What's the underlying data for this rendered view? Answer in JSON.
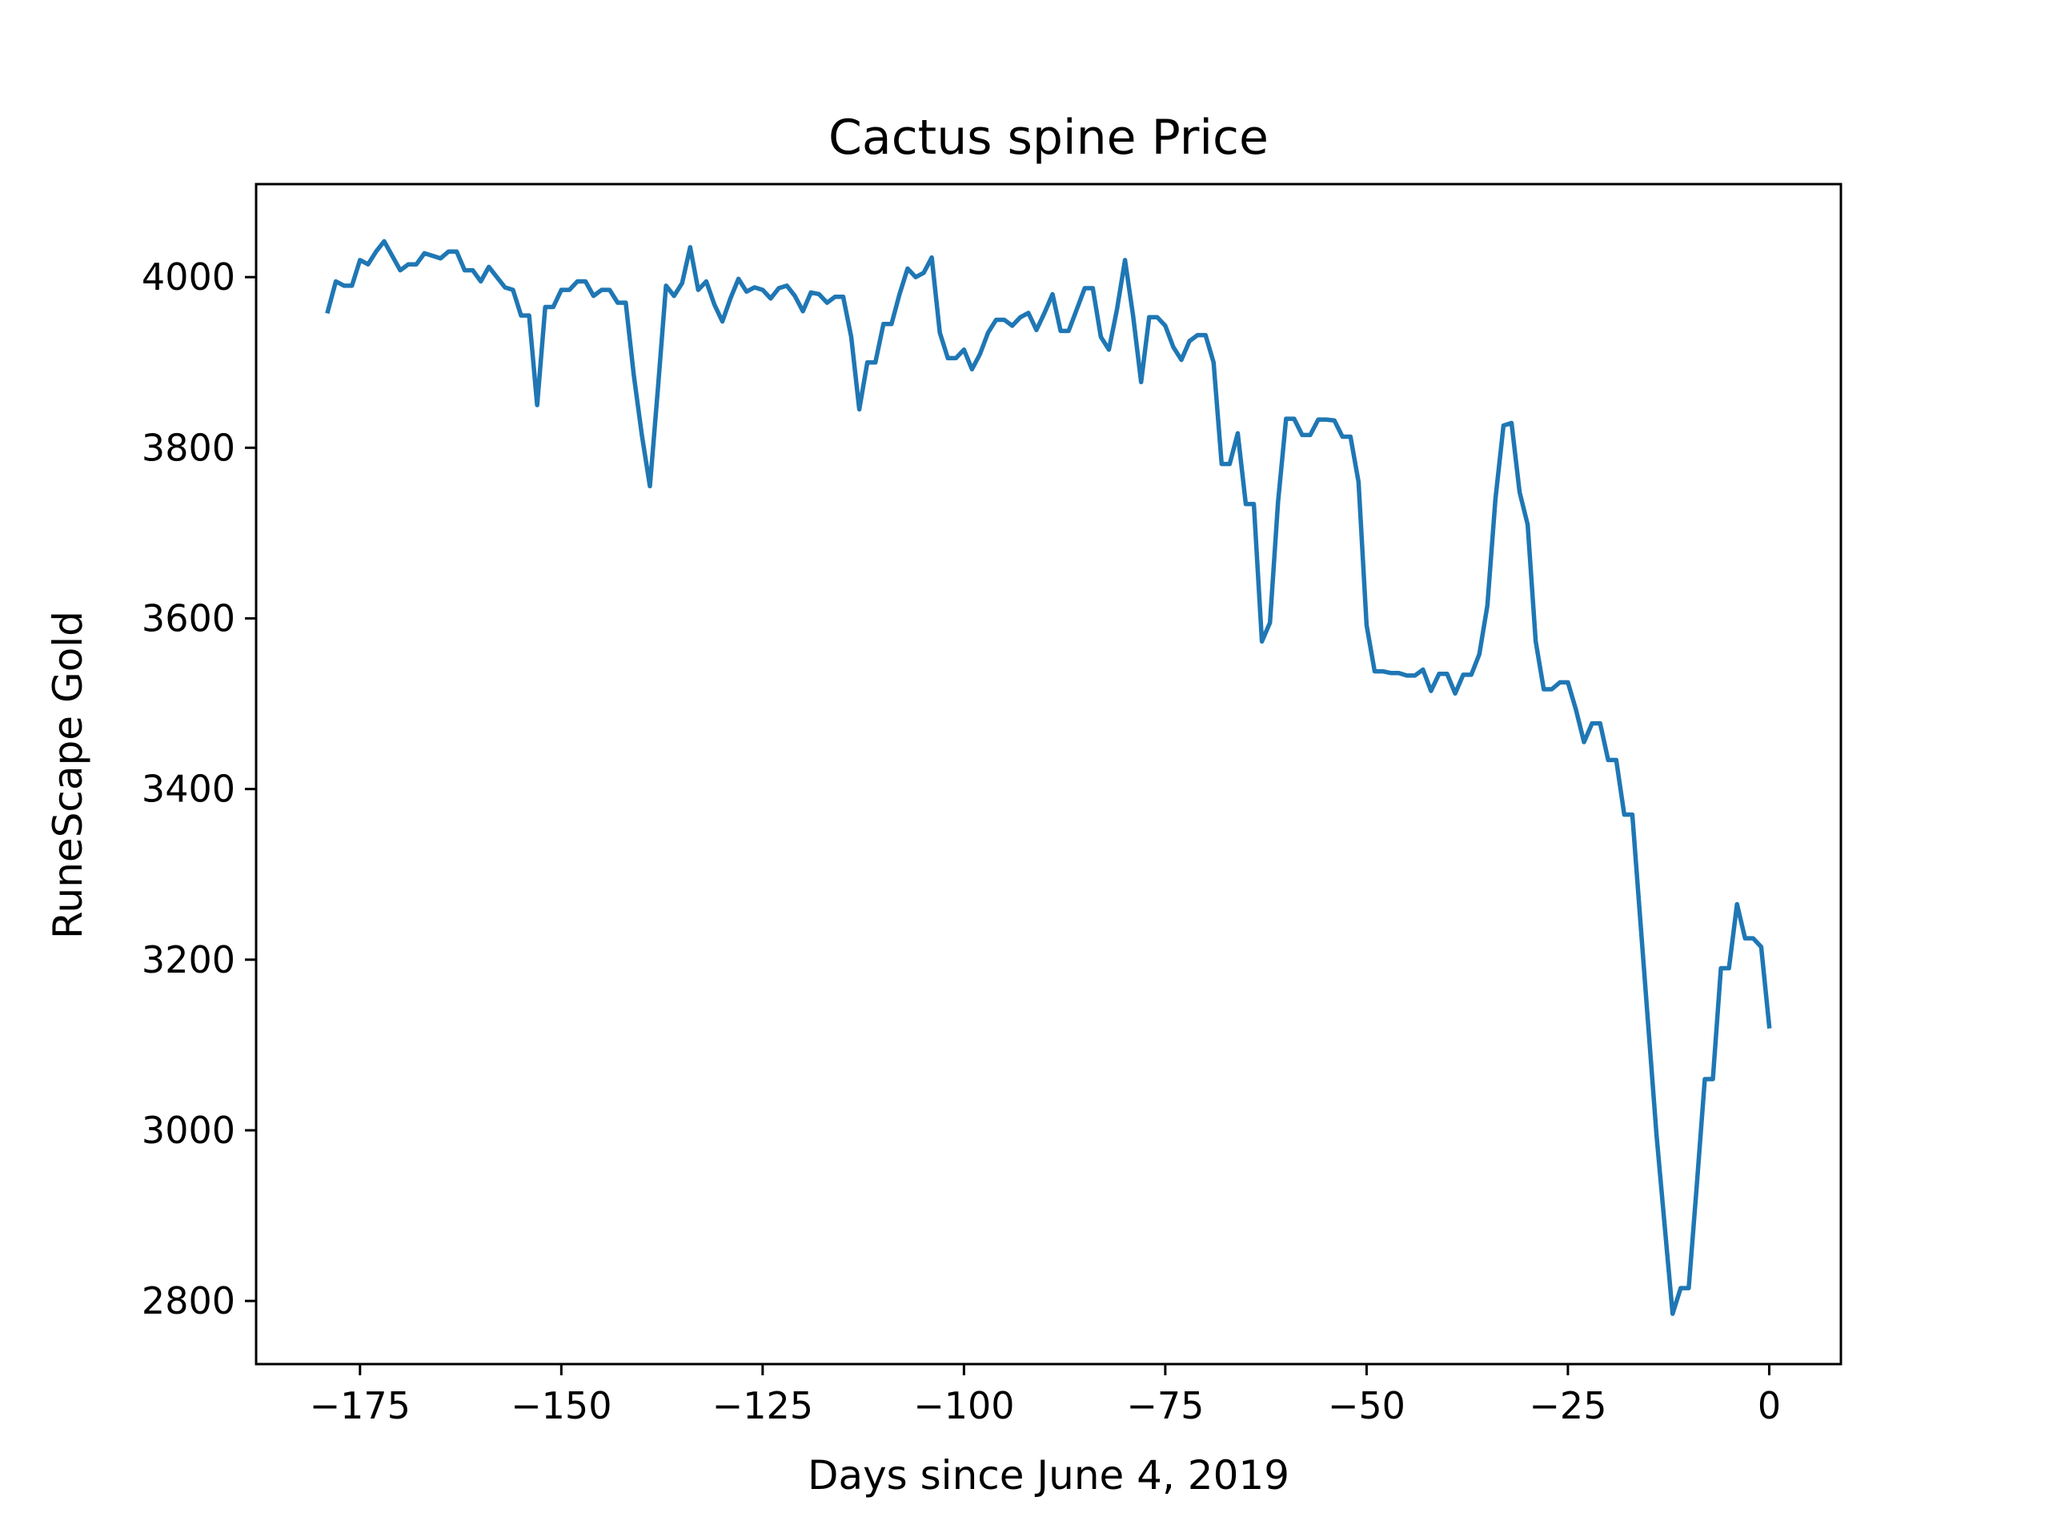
{
  "chart_data": {
    "type": "line",
    "title": "Cactus spine Price",
    "xlabel": "Days since June 4, 2019",
    "ylabel": "RuneScape Gold",
    "xlim": [
      -187.9,
      8.9
    ],
    "ylim": [
      2726,
      4109
    ],
    "xticks": [
      -175,
      -150,
      -125,
      -100,
      -75,
      -50,
      -25,
      0
    ],
    "xtick_labels": [
      "−175",
      "−150",
      "−125",
      "−100",
      "−75",
      "−50",
      "−25",
      "0"
    ],
    "yticks": [
      2800,
      3000,
      3200,
      3400,
      3600,
      3800,
      4000
    ],
    "ytick_labels": [
      "2800",
      "3000",
      "3200",
      "3400",
      "3600",
      "3800",
      "4000"
    ],
    "grid": false,
    "line_color": "#1f77b4",
    "series": [
      {
        "name": "",
        "x": [
          -179,
          -178,
          -177,
          -176,
          -175,
          -174,
          -173,
          -172,
          -171,
          -170,
          -169,
          -168,
          -167,
          -166,
          -165,
          -164,
          -163,
          -162,
          -161,
          -160,
          -159,
          -158,
          -157,
          -156,
          -155,
          -154,
          -153,
          -152,
          -151,
          -150,
          -149,
          -148,
          -147,
          -146,
          -145,
          -144,
          -143,
          -142,
          -141,
          -140,
          -139,
          -138,
          -137,
          -136,
          -135,
          -134,
          -133,
          -132,
          -131,
          -130,
          -129,
          -128,
          -127,
          -126,
          -125,
          -124,
          -123,
          -122,
          -121,
          -120,
          -119,
          -118,
          -117,
          -116,
          -115,
          -114,
          -113,
          -112,
          -111,
          -110,
          -109,
          -108,
          -107,
          -106,
          -105,
          -104,
          -103,
          -102,
          -101,
          -100,
          -99,
          -98,
          -97,
          -96,
          -95,
          -94,
          -93,
          -92,
          -91,
          -90,
          -89,
          -88,
          -87,
          -86,
          -85,
          -84,
          -83,
          -82,
          -81,
          -80,
          -79,
          -78,
          -77,
          -76,
          -75,
          -74,
          -73,
          -72,
          -71,
          -70,
          -69,
          -68,
          -67,
          -66,
          -65,
          -64,
          -63,
          -62,
          -61,
          -60,
          -59,
          -58,
          -57,
          -56,
          -55,
          -54,
          -53,
          -52,
          -51,
          -50,
          -49,
          -48,
          -47,
          -46,
          -45,
          -44,
          -43,
          -42,
          -41,
          -40,
          -39,
          -38,
          -37,
          -36,
          -35,
          -34,
          -33,
          -32,
          -31,
          -30,
          -29,
          -28,
          -27,
          -26,
          -25,
          -24,
          -23,
          -22,
          -21,
          -20,
          -19,
          -18,
          -17,
          -16,
          -15,
          -14,
          -13,
          -12,
          -11,
          -10,
          -9,
          -8,
          -7,
          -6,
          -5,
          -4,
          -3,
          -2,
          -1,
          0
        ],
        "values": [
          3960,
          3995,
          3990,
          3990,
          4020,
          4015,
          4030,
          4042,
          4025,
          4008,
          4015,
          4015,
          4028,
          4025,
          4022,
          4030,
          4030,
          4008,
          4008,
          3995,
          4012,
          4000,
          3988,
          3985,
          3955,
          3955,
          3850,
          3965,
          3965,
          3985,
          3985,
          3995,
          3995,
          3978,
          3985,
          3985,
          3970,
          3970,
          3885,
          3815,
          3755,
          3870,
          3990,
          3978,
          3993,
          4035,
          3985,
          3995,
          3968,
          3948,
          3975,
          3998,
          3983,
          3988,
          3985,
          3975,
          3987,
          3990,
          3978,
          3960,
          3982,
          3980,
          3970,
          3977,
          3977,
          3930,
          3845,
          3900,
          3900,
          3945,
          3945,
          3980,
          4010,
          4000,
          4005,
          4023,
          3935,
          3905,
          3905,
          3915,
          3892,
          3910,
          3935,
          3950,
          3950,
          3943,
          3953,
          3958,
          3938,
          3958,
          3980,
          3937,
          3937,
          3962,
          3987,
          3987,
          3930,
          3915,
          3962,
          4020,
          3955,
          3877,
          3953,
          3953,
          3943,
          3918,
          3903,
          3925,
          3932,
          3932,
          3900,
          3781,
          3781,
          3817,
          3734,
          3734,
          3573,
          3595,
          3736,
          3834,
          3834,
          3815,
          3815,
          3833,
          3833,
          3832,
          3813,
          3813,
          3760,
          3592,
          3538,
          3538,
          3536,
          3536,
          3533,
          3533,
          3540,
          3515,
          3535,
          3535,
          3512,
          3534,
          3534,
          3558,
          3615,
          3740,
          3826,
          3829,
          3748,
          3710,
          3573,
          3517,
          3517,
          3525,
          3525,
          3493,
          3455,
          3477,
          3477,
          3434,
          3434,
          3370,
          3370,
          3245,
          3120,
          2995,
          2890,
          2785,
          2815,
          2815,
          2935,
          3060,
          3060,
          3190,
          3190,
          3265,
          3225,
          3225,
          3215,
          3122
        ]
      }
    ]
  }
}
